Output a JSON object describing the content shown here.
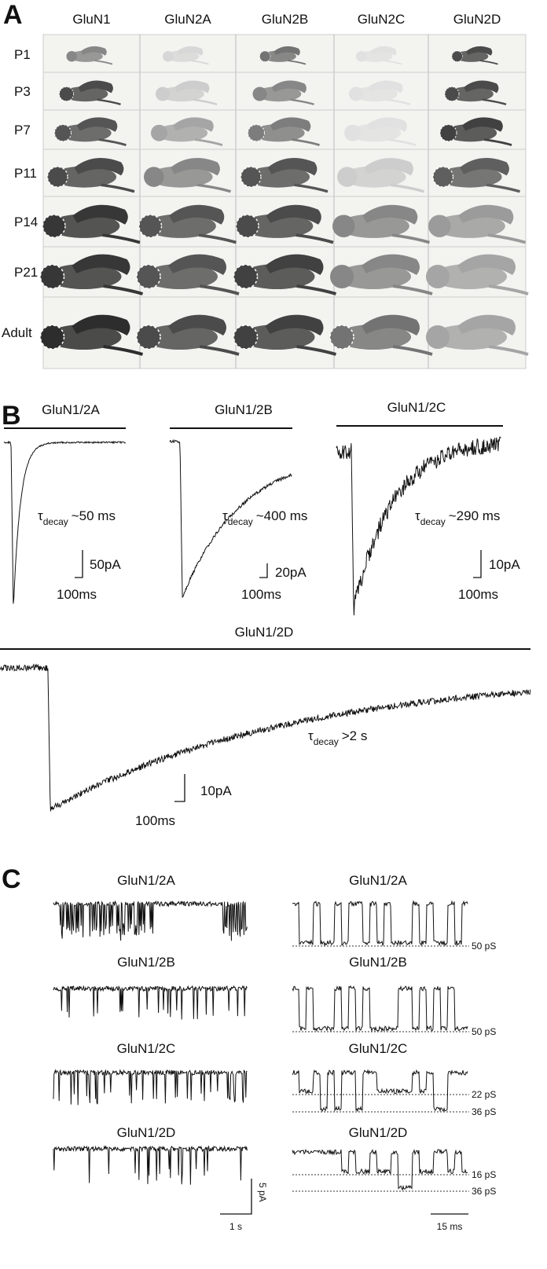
{
  "panel_a": {
    "label": "A",
    "columns": [
      "GluN1",
      "GluN2A",
      "GluN2B",
      "GluN2C",
      "GluN2D"
    ],
    "rows": [
      "P1",
      "P3",
      "P7",
      "P11",
      "P14",
      "P21",
      "Adult"
    ]
  },
  "panel_b": {
    "label": "B",
    "traces": [
      {
        "title": "GluN1/2A",
        "tau_symbol": "τ",
        "tau_subscript": "decay",
        "tau_value": "~50 ms",
        "scale_current": "50pA",
        "scale_time": "100ms"
      },
      {
        "title": "GluN1/2B",
        "tau_symbol": "τ",
        "tau_subscript": "decay",
        "tau_value": "~400 ms",
        "scale_current": "20pA",
        "scale_time": "100ms"
      },
      {
        "title": "GluN1/2C",
        "tau_symbol": "τ",
        "tau_subscript": "decay",
        "tau_value": "~290 ms",
        "scale_current": "10pA",
        "scale_time": "100ms"
      },
      {
        "title": "GluN1/2D",
        "tau_symbol": "τ",
        "tau_subscript": "decay",
        "tau_value": ">2 s",
        "scale_current": "10pA",
        "scale_time": "100ms"
      }
    ]
  },
  "panel_c": {
    "label": "C",
    "rows": [
      {
        "title_left": "GluN1/2A",
        "title_right": "GluN1/2A",
        "conductances": [
          "50 pS"
        ]
      },
      {
        "title_left": "GluN1/2B",
        "title_right": "GluN1/2B",
        "conductances": [
          "50 pS"
        ]
      },
      {
        "title_left": "GluN1/2C",
        "title_right": "GluN1/2C",
        "conductances": [
          "22 pS",
          "36 pS"
        ]
      },
      {
        "title_left": "GluN1/2D",
        "title_right": "GluN1/2D",
        "conductances": [
          "16 pS",
          "36 pS"
        ]
      }
    ],
    "scale_current": "5 pA",
    "scale_time_left": "1 s",
    "scale_time_right": "15 ms"
  }
}
